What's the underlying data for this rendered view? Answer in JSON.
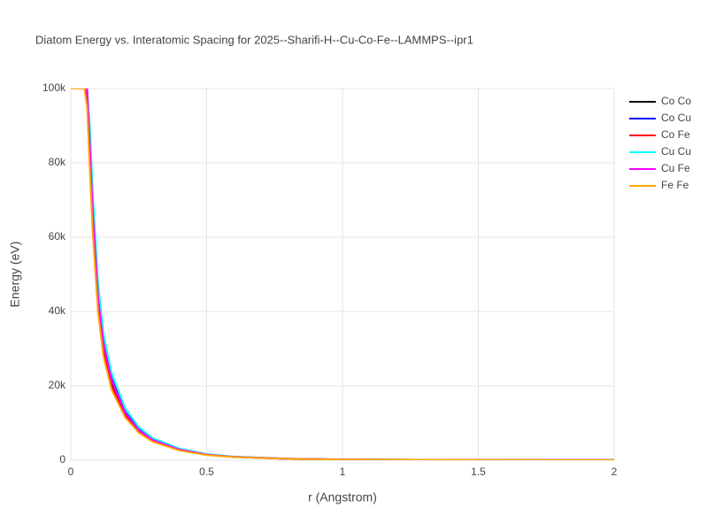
{
  "chart_data": {
    "type": "line",
    "title": "Diatom Energy vs. Interatomic Spacing for 2025--Sharifi-H--Cu-Co-Fe--LAMMPS--ipr1",
    "x_label": "r (Angstrom)",
    "y_label": "Energy (eV)",
    "x": [
      0,
      0.05,
      0.06,
      0.07,
      0.08,
      0.1,
      0.12,
      0.15,
      0.2,
      0.25,
      0.3,
      0.4,
      0.5,
      0.6,
      0.8,
      1,
      1.5,
      2
    ],
    "series": [
      {
        "name": "Co Co",
        "color": "#000000",
        "values": [
          100000,
          100000,
          100000,
          84000,
          67000,
          43000,
          31000,
          21000,
          12500,
          8000,
          5400,
          2800,
          1500,
          900,
          380,
          180,
          70,
          20
        ]
      },
      {
        "name": "Co Cu",
        "color": "#0000ff",
        "values": [
          100000,
          100000,
          100000,
          86000,
          69000,
          45000,
          32000,
          22000,
          13000,
          8300,
          5600,
          2900,
          1550,
          930,
          390,
          185,
          72,
          21
        ]
      },
      {
        "name": "Co Fe",
        "color": "#ff0000",
        "values": [
          100000,
          100000,
          98000,
          81000,
          64000,
          41000,
          29500,
          20000,
          12000,
          7700,
          5200,
          2700,
          1450,
          870,
          360,
          175,
          68,
          19
        ]
      },
      {
        "name": "Cu Cu",
        "color": "#00ffff",
        "values": [
          100000,
          100000,
          100000,
          90000,
          73000,
          48000,
          34000,
          23500,
          14000,
          8900,
          6000,
          3100,
          1650,
          980,
          410,
          195,
          75,
          22
        ]
      },
      {
        "name": "Cu Fe",
        "color": "#ff00ff",
        "values": [
          100000,
          100000,
          100000,
          85000,
          68000,
          44000,
          31500,
          21500,
          12700,
          8100,
          5500,
          2850,
          1520,
          910,
          385,
          182,
          71,
          20
        ]
      },
      {
        "name": "Fe Fe",
        "color": "#ffa500",
        "values": [
          100000,
          100000,
          95000,
          78000,
          62000,
          40000,
          28000,
          19000,
          11500,
          7400,
          5000,
          2600,
          1400,
          850,
          350,
          170,
          65,
          18
        ]
      }
    ],
    "xlim": [
      0,
      2
    ],
    "xticks": [
      0,
      0.5,
      1,
      1.5,
      2
    ],
    "ylim": [
      0,
      100000
    ],
    "yticks": [
      0,
      {
        "value": 20000,
        "label": "20k"
      },
      {
        "value": 40000,
        "label": "40k"
      },
      {
        "value": 60000,
        "label": "60k"
      },
      {
        "value": 80000,
        "label": "80k"
      },
      {
        "value": 100000,
        "label": "100k"
      }
    ],
    "grid": true,
    "legend": "right"
  }
}
